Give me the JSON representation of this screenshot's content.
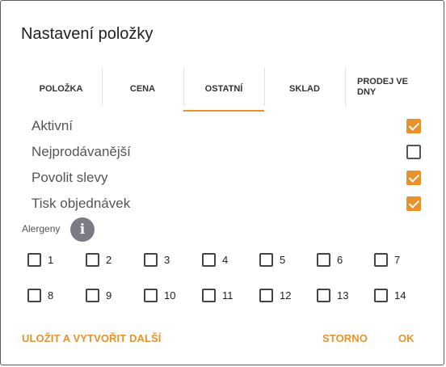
{
  "dialog": {
    "title": "Nastavení položky"
  },
  "tabs": [
    {
      "label": "POLOŽKA",
      "active": false
    },
    {
      "label": "CENA",
      "active": false
    },
    {
      "label": "OSTATNÍ",
      "active": true
    },
    {
      "label": "SKLAD",
      "active": false
    },
    {
      "label": "PRODEJ VE DNY",
      "line1": "PRODEJ VE",
      "line2": "DNY",
      "active": false
    }
  ],
  "options": [
    {
      "label": "Aktivní",
      "checked": true
    },
    {
      "label": "Nejprodávanější",
      "checked": false
    },
    {
      "label": "Povolit slevy",
      "checked": true
    },
    {
      "label": "Tisk objednávek",
      "checked": true
    }
  ],
  "allergens": {
    "label": "Alergeny",
    "info_icon": "info-icon",
    "items": [
      "1",
      "2",
      "3",
      "4",
      "5",
      "6",
      "7",
      "8",
      "9",
      "10",
      "11",
      "12",
      "13",
      "14"
    ],
    "checked": []
  },
  "footer": {
    "save_and_new": "ULOŽIT A VYTVOŘIT DALŠÍ",
    "cancel": "STORNO",
    "ok": "OK"
  },
  "colors": {
    "accent": "#e8922c",
    "info_icon_bg": "#7b7b86"
  }
}
